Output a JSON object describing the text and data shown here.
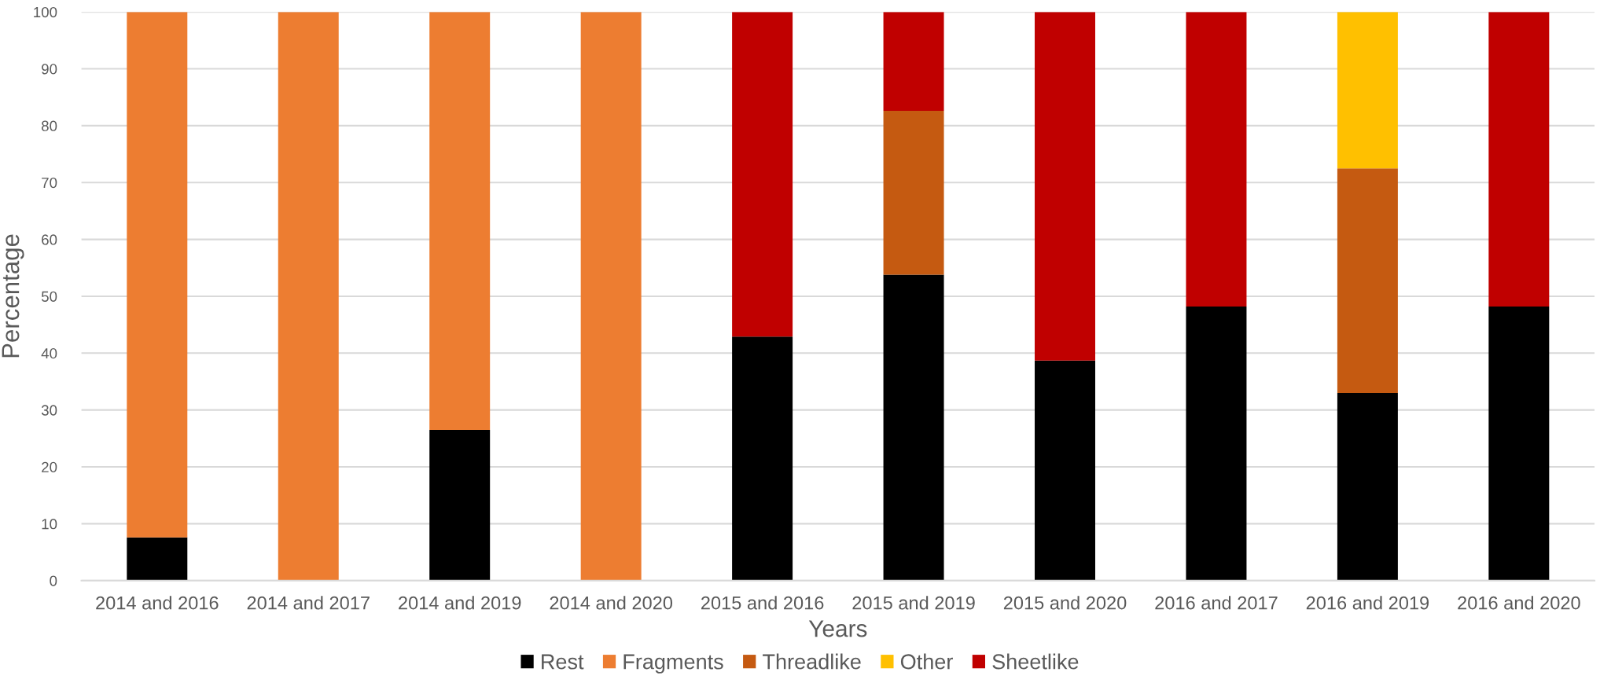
{
  "chart_data": {
    "type": "bar",
    "stacked": true,
    "xlabel": "Years",
    "ylabel": "Percentage",
    "categories": [
      "2014 and 2016",
      "2014 and 2017",
      "2014 and 2019",
      "2014 and 2020",
      "2015 and 2016",
      "2015 and 2019",
      "2015 and 2020",
      "2016 and 2017",
      "2016 and 2019",
      "2016 and 2020"
    ],
    "series": [
      {
        "name": "Rest",
        "color": "#000000",
        "values": [
          7.6,
          null,
          26.5,
          null,
          42.9,
          53.8,
          38.7,
          48.2,
          33.0,
          48.2
        ]
      },
      {
        "name": "Fragments",
        "color": "#ed7d31",
        "values": [
          92.4,
          100,
          73.5,
          100,
          null,
          null,
          null,
          null,
          null,
          null
        ]
      },
      {
        "name": "Threadlike",
        "color": "#c55a11",
        "values": [
          null,
          null,
          null,
          null,
          null,
          28.8,
          null,
          null,
          39.5,
          null
        ]
      },
      {
        "name": "Other",
        "color": "#ffc000",
        "values": [
          null,
          null,
          null,
          null,
          null,
          null,
          null,
          null,
          27.5,
          null
        ]
      },
      {
        "name": "Sheetlike",
        "color": "#c00000",
        "values": [
          null,
          null,
          null,
          null,
          57.1,
          17.4,
          61.3,
          51.8,
          null,
          51.8
        ]
      }
    ],
    "ylim": [
      0,
      100
    ],
    "yticks": [
      0,
      10,
      20,
      30,
      40,
      50,
      60,
      70,
      80,
      90,
      100
    ],
    "grid": "y",
    "legend": "bottom"
  }
}
